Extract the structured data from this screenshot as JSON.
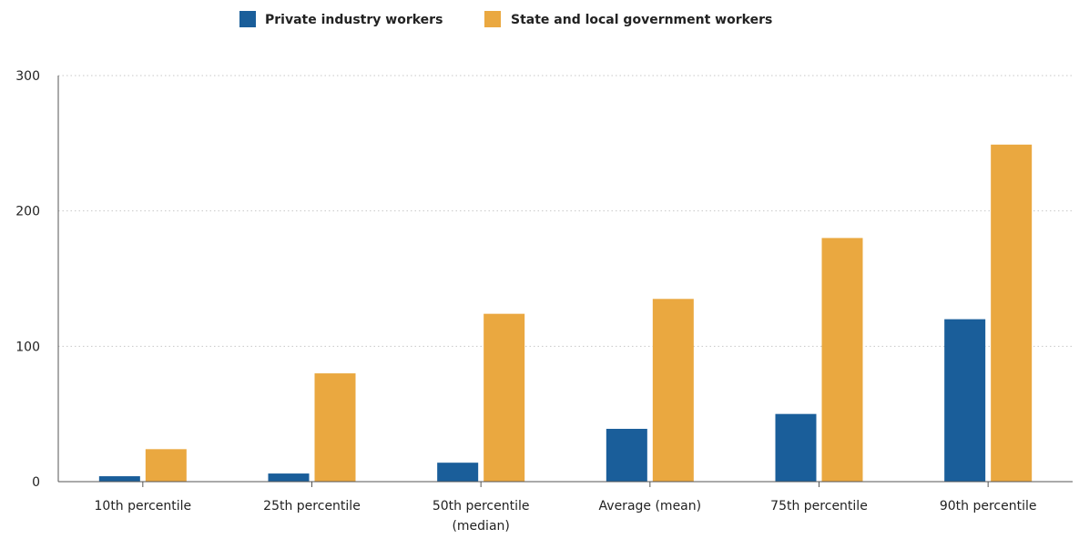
{
  "chart_data": {
    "type": "bar",
    "categories": [
      [
        "10th percentile"
      ],
      [
        "25th percentile"
      ],
      [
        "50th percentile",
        "(median)"
      ],
      [
        "Average (mean)"
      ],
      [
        "75th percentile"
      ],
      [
        "90th percentile"
      ]
    ],
    "series": [
      {
        "name": "Private industry workers",
        "color": "#1a5e9a",
        "values": [
          4,
          6,
          14,
          39,
          50,
          120
        ]
      },
      {
        "name": "State and local government workers",
        "color": "#eaa840",
        "values": [
          24,
          80,
          124,
          135,
          180,
          249
        ]
      }
    ],
    "ylim": [
      0,
      300
    ],
    "yticks": [
      0,
      100,
      200,
      300
    ],
    "grid": true,
    "legend_position": "top-center",
    "title": "",
    "xlabel": "",
    "ylabel": ""
  }
}
